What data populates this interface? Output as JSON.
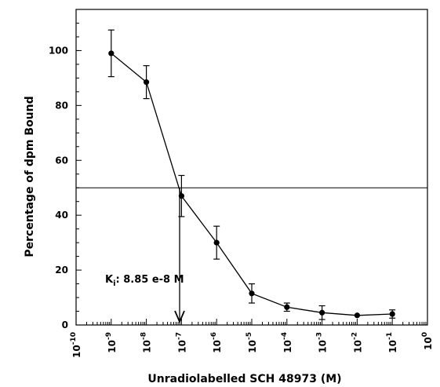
{
  "chart_data": {
    "type": "scatter",
    "title": "",
    "xlabel": "Unradiolabelled SCH 48973 (M)",
    "ylabel": "Percentage of dpm Bound",
    "x_scale": "log",
    "xlim": [
      1e-10,
      1
    ],
    "ylim": [
      0,
      115
    ],
    "x_tick_labels": [
      {
        "base": "10",
        "exp": "-10"
      },
      {
        "base": "10",
        "exp": "-9"
      },
      {
        "base": "10",
        "exp": "-8"
      },
      {
        "base": "10",
        "exp": "-7"
      },
      {
        "base": "10",
        "exp": "-6"
      },
      {
        "base": "10",
        "exp": "-5"
      },
      {
        "base": "10",
        "exp": "-4"
      },
      {
        "base": "10",
        "exp": "-3"
      },
      {
        "base": "10",
        "exp": "-2"
      },
      {
        "base": "10",
        "exp": "-1"
      },
      {
        "base": "10",
        "exp": "0"
      }
    ],
    "y_ticks": [
      0,
      20,
      40,
      60,
      80,
      100
    ],
    "y_tick_labels": [
      "0",
      "20",
      "40",
      "60",
      "80",
      "100"
    ],
    "grid": false,
    "legend": "none",
    "series": [
      {
        "x": [
          1e-09,
          1e-08,
          1e-07,
          1e-06,
          1e-05,
          0.0001,
          0.001,
          0.01,
          0.1
        ],
        "y": [
          99,
          88.5,
          47,
          30,
          11.5,
          6.5,
          4.5,
          3.5,
          4
        ],
        "error": [
          8.5,
          6,
          7.5,
          6,
          3.5,
          1.5,
          2.5,
          0,
          1.5
        ],
        "color": "#000000"
      }
    ],
    "reference_line": {
      "y": 50
    },
    "annotation": {
      "k": "K",
      "sub": "i",
      "value": ":  8.85 e-8 M",
      "x": 8.85e-08
    }
  }
}
